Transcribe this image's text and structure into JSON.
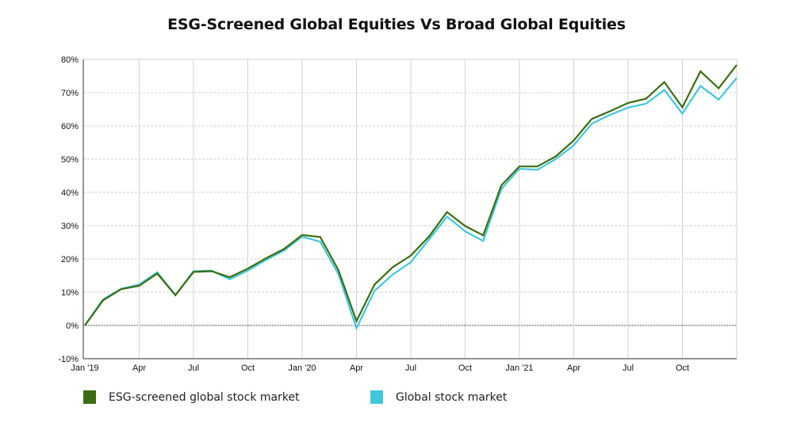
{
  "chart_data": {
    "type": "line",
    "title": "ESG-Screened Global Equities Vs Broad Global Equities",
    "xlabel": "",
    "ylabel": "",
    "ylim": [
      -10,
      80
    ],
    "y_ticks": [
      "-10%",
      "0%",
      "10%",
      "20%",
      "30%",
      "40%",
      "50%",
      "60%",
      "70%",
      "80%"
    ],
    "y_tick_values": [
      -10,
      0,
      10,
      20,
      30,
      40,
      50,
      60,
      70,
      80
    ],
    "x_ticks": [
      {
        "label": "Jan '19",
        "date": "2019-01"
      },
      {
        "label": "Apr",
        "date": "2019-04"
      },
      {
        "label": "Jul",
        "date": "2019-07"
      },
      {
        "label": "Oct",
        "date": "2019-10"
      },
      {
        "label": "Jan '20",
        "date": "2020-01"
      },
      {
        "label": "Apr",
        "date": "2020-04"
      },
      {
        "label": "Jul",
        "date": "2020-07"
      },
      {
        "label": "Oct",
        "date": "2020-10"
      },
      {
        "label": "Jan '21",
        "date": "2021-01"
      },
      {
        "label": "Apr",
        "date": "2021-04"
      },
      {
        "label": "Jul",
        "date": "2021-07"
      },
      {
        "label": "Oct",
        "date": "2021-10"
      }
    ],
    "xlim": [
      "2019-01",
      "2022-01"
    ],
    "grid": true,
    "legend_position": "bottom",
    "x": [
      "2019-01",
      "2019-02",
      "2019-03",
      "2019-04",
      "2019-05",
      "2019-06",
      "2019-07",
      "2019-08",
      "2019-09",
      "2019-10",
      "2019-11",
      "2019-12",
      "2020-01",
      "2020-02",
      "2020-03",
      "2020-04",
      "2020-05",
      "2020-06",
      "2020-07",
      "2020-08",
      "2020-09",
      "2020-10",
      "2020-11",
      "2020-12",
      "2021-01",
      "2021-02",
      "2021-03",
      "2021-04",
      "2021-05",
      "2021-06",
      "2021-07",
      "2021-08",
      "2021-09",
      "2021-10",
      "2021-11",
      "2021-12",
      "2022-01"
    ],
    "series": [
      {
        "name": "ESG-screened global stock market",
        "color": "#3b6e14",
        "values": [
          0,
          7.5,
          10.9,
          11.9,
          15.6,
          9.1,
          16.1,
          16.3,
          14.5,
          17.1,
          20.2,
          23.0,
          27.2,
          26.6,
          16.7,
          1.3,
          12.3,
          17.5,
          21.0,
          26.7,
          34.1,
          29.9,
          27.1,
          42.1,
          47.8,
          47.8,
          50.8,
          55.6,
          62.1,
          64.4,
          66.9,
          68.2,
          73.2,
          65.6,
          76.4,
          71.3,
          78.3
        ]
      },
      {
        "name": "Global stock market",
        "color": "#43c6dc",
        "values": [
          0,
          7.8,
          11.0,
          12.3,
          16.0,
          9.1,
          16.3,
          16.5,
          13.9,
          16.5,
          19.7,
          22.5,
          26.7,
          25.2,
          15.5,
          -0.8,
          10.4,
          15.3,
          19.0,
          25.8,
          32.7,
          28.3,
          25.4,
          41.0,
          47.1,
          46.8,
          50.0,
          54.2,
          60.7,
          63.3,
          65.5,
          66.7,
          70.8,
          63.7,
          72.0,
          67.9,
          74.4
        ]
      }
    ]
  }
}
